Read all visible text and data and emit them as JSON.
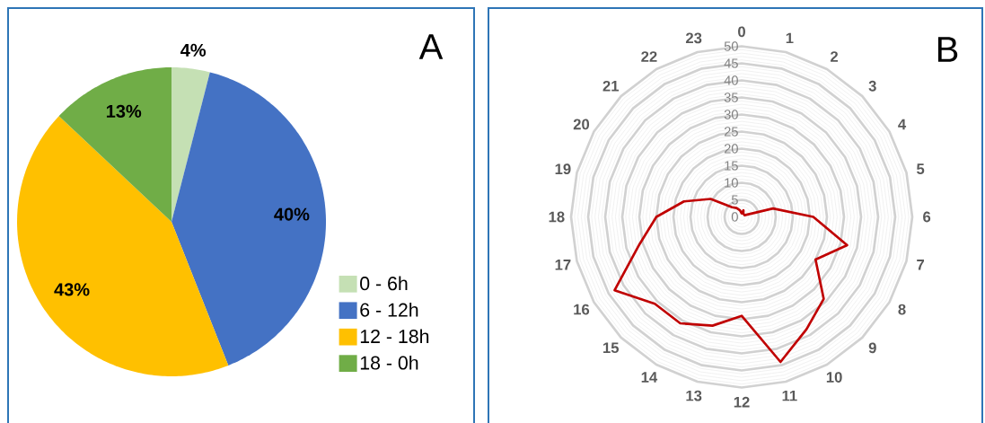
{
  "chart_data": [
    {
      "type": "pie",
      "categories": [
        "0 - 6h",
        "6 - 12h",
        "12 - 18h",
        "18 - 0h"
      ],
      "values": [
        4,
        40,
        43,
        13
      ],
      "colors": [
        "#c5e0b4",
        "#4472c4",
        "#ffc000",
        "#70ad47"
      ],
      "value_labels": [
        "4%",
        "40%",
        "43%",
        "13%"
      ],
      "legend": "bottom right",
      "annotations": [
        "A"
      ]
    },
    {
      "type": "radar",
      "categories": [
        "0",
        "1",
        "2",
        "3",
        "4",
        "5",
        "6",
        "7",
        "8",
        "9",
        "10",
        "11",
        "12",
        "13",
        "14",
        "15",
        "16",
        "17",
        "18",
        "19",
        "20",
        "21",
        "22",
        "23"
      ],
      "series": [
        {
          "color": "#c00000",
          "values": [
            1,
            2,
            1,
            1,
            1,
            9.5,
            21,
            32,
            25,
            34,
            38,
            44,
            29,
            33,
            36,
            36,
            43,
            31,
            25,
            17.5,
            10.5,
            4,
            3,
            2
          ]
        }
      ],
      "ylim": [
        0,
        50
      ],
      "yticks": [
        0,
        5,
        10,
        15,
        20,
        25,
        30,
        35,
        40,
        45,
        50
      ],
      "grid": true,
      "annotations": [
        "B"
      ]
    }
  ]
}
